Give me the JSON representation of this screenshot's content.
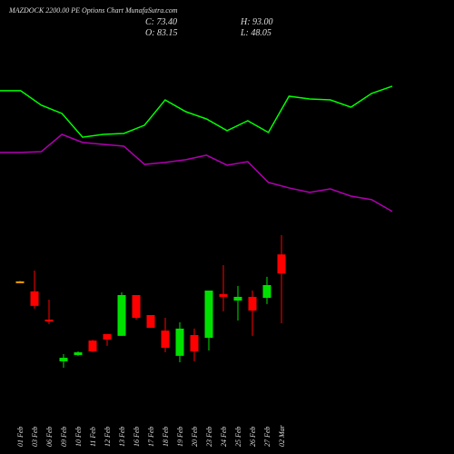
{
  "chart_data": [
    {
      "type": "candlestick",
      "title": "MAZDOCK 2200.00 PE Options Chart MunafaSutra.com",
      "ohlc_labels": [
        "C: 73.40",
        "O: 83.15",
        "H: 93.00",
        "L: 48.05"
      ],
      "categories": [
        "01 Feb",
        "03 Feb",
        "06 Feb",
        "09 Feb",
        "10 Feb",
        "11 Feb",
        "12 Feb",
        "13 Feb",
        "16 Feb",
        "17 Feb",
        "18 Feb",
        "19 Feb",
        "20 Feb",
        "23 Feb",
        "24 Feb",
        "25 Feb",
        "26 Feb",
        "27 Feb",
        "02 Mar"
      ],
      "open": [
        69.4,
        64.3,
        49.9,
        28.6,
        31.8,
        39.2,
        42.5,
        41.6,
        62.4,
        52.2,
        44.3,
        31.4,
        42.0,
        40.6,
        62.9,
        59.6,
        61.5,
        61.0,
        83.15
      ],
      "high": [
        69.6,
        74.9,
        60.1,
        32.3,
        33.7,
        39.6,
        42.5,
        63.8,
        62.4,
        52.2,
        50.8,
        48.5,
        45.3,
        64.7,
        77.7,
        67.1,
        64.7,
        71.7,
        93.0
      ],
      "low": [
        69.2,
        55.5,
        47.6,
        25.3,
        31.4,
        33.4,
        36.5,
        41.6,
        49.9,
        45.7,
        33.2,
        28.1,
        28.6,
        34.1,
        54.1,
        49.4,
        41.6,
        57.8,
        48.05
      ],
      "close": [
        69.4,
        56.9,
        49.0,
        30.4,
        33.2,
        33.7,
        39.7,
        62.4,
        50.8,
        45.7,
        35.5,
        45.3,
        33.7,
        64.7,
        61.5,
        61.5,
        54.5,
        67.5,
        73.4
      ],
      "up_color": "#00e000",
      "down_color": "#ff0000",
      "flat_color": "#f0a000",
      "ylim": [
        -18.7,
        213
      ]
    },
    {
      "type": "line",
      "series": [
        {
          "color": "#00ff00",
          "values": [
            166.7,
            166.7,
            159.3,
            155.1,
            143.0,
            144.4,
            144.9,
            149.1,
            162.0,
            156.0,
            152.3,
            146.3,
            151.4,
            145.4,
            163.9,
            162.5,
            162.0,
            158.3,
            165.3,
            169.0
          ]
        },
        {
          "color": "#b000b0",
          "values": [
            135.2,
            135.2,
            135.6,
            144.4,
            140.3,
            139.3,
            138.4,
            129.1,
            130.1,
            131.5,
            133.8,
            128.7,
            130.5,
            119.9,
            117.1,
            114.8,
            116.6,
            112.9,
            111.1,
            105.1
          ]
        }
      ],
      "ylim": [
        -18.7,
        213
      ]
    }
  ]
}
